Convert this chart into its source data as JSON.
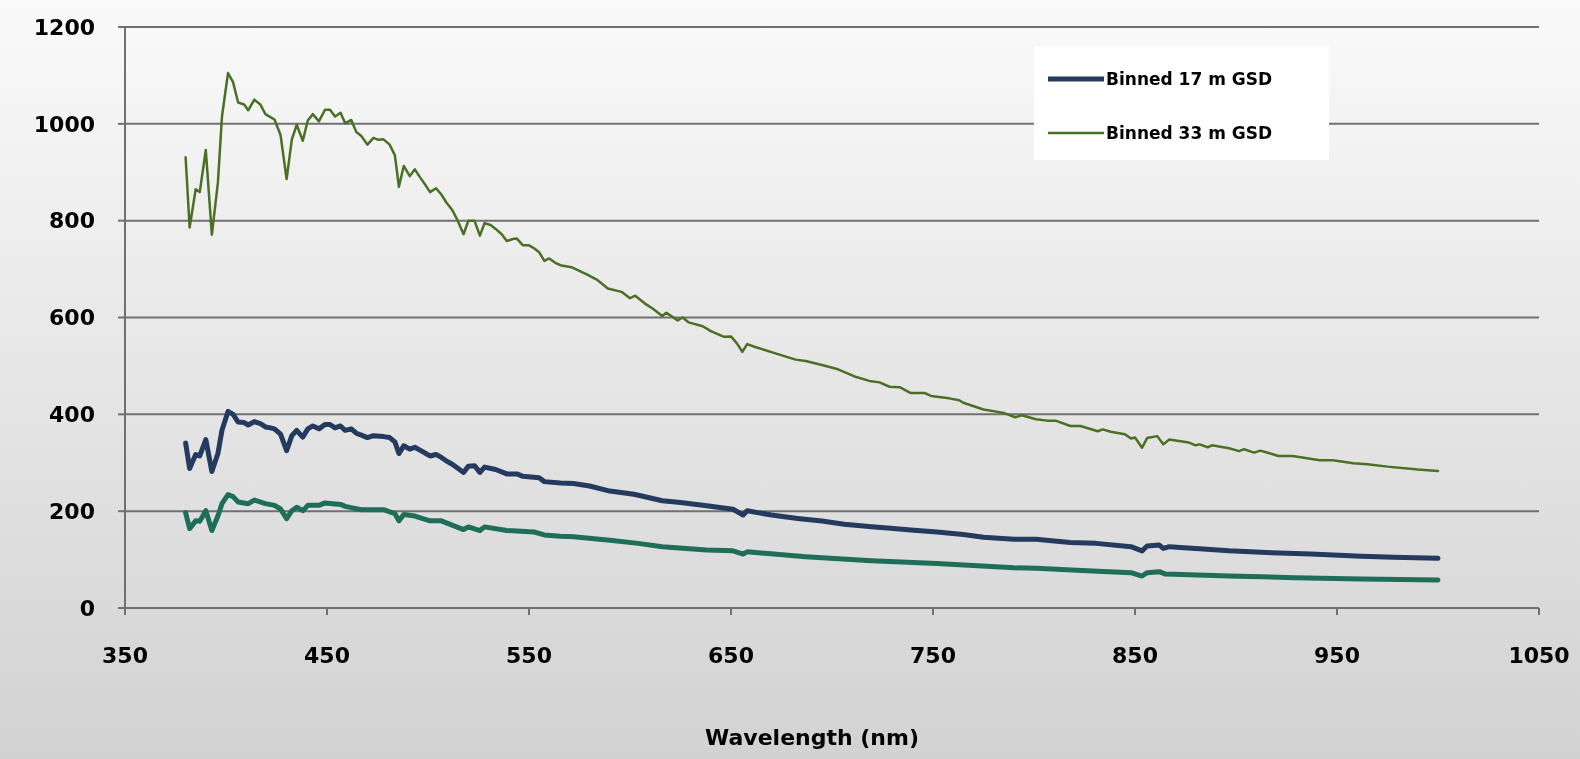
{
  "chart_data": {
    "type": "line",
    "xlabel": "Wavelength (nm)",
    "xlim": [
      350,
      1050
    ],
    "xticks": [
      350,
      450,
      550,
      650,
      750,
      850,
      950,
      1050
    ],
    "ylim": [
      0,
      1200
    ],
    "yticks": [
      0,
      200,
      400,
      600,
      800,
      1000,
      1200
    ],
    "grid": "y",
    "legend": "top right",
    "marker": "none",
    "line_style": "solid",
    "series": [
      {
        "name": "Binned 17 m GSD",
        "color": "#243a5e",
        "x": [
          380,
          382,
          385,
          387,
          390,
          393,
          396,
          398,
          401,
          403.5,
          406,
          409,
          411,
          414,
          417,
          419.5,
          422,
          424,
          427,
          430,
          432.6,
          435,
          438,
          440.5,
          443,
          446,
          449,
          451.5,
          454,
          456.7,
          459,
          462,
          464.5,
          467,
          470,
          473,
          478,
          481,
          483.6,
          485.6,
          488,
          491,
          493.5,
          496,
          499,
          501,
          504,
          506.6,
          509,
          512,
          514.6,
          517.6,
          520,
          523,
          525.7,
          528,
          533.5,
          539,
          544,
          547,
          555,
          557.6,
          565.5,
          572,
          580,
          590,
          602,
          616,
          625,
          638,
          651,
          656,
          658,
          670,
          683,
          695,
          706,
          719.6,
          729,
          739,
          752,
          765,
          775,
          790,
          801,
          818,
          830.8,
          848,
          853.5,
          856,
          862,
          864,
          867,
          880,
          896.6,
          917.6,
          937,
          962,
          978,
          1000
        ],
        "values": [
          341,
          288,
          317,
          314,
          348,
          282,
          319,
          367,
          406,
          400,
          384,
          383,
          378,
          385,
          381,
          374,
          372,
          370,
          359,
          325,
          356,
          367,
          353,
          370,
          376,
          370,
          379,
          379,
          372,
          376,
          367,
          370,
          361,
          357,
          352,
          356,
          354,
          352,
          343,
          319,
          335,
          328,
          332,
          326,
          319,
          314,
          317,
          311,
          304,
          297,
          289,
          280,
          293,
          294,
          280,
          291,
          286,
          277,
          277,
          272,
          269,
          261,
          258,
          257,
          252,
          241.5,
          235,
          221.5,
          218,
          211,
          204,
          192,
          201,
          192,
          185,
          179.6,
          173,
          168,
          164.5,
          161,
          157,
          152,
          146,
          142,
          142,
          135.5,
          133.5,
          126.6,
          118,
          128,
          130,
          123,
          126.6,
          123,
          118,
          114,
          111.5,
          107,
          104.6,
          102.6
        ]
      },
      {
        "name": "Binned 33 m GSD",
        "color": "#4a7023",
        "x": [
          380,
          382,
          385,
          387,
          390,
          393,
          396,
          398,
          401,
          403.5,
          406,
          409,
          411,
          414,
          417,
          419.5,
          422,
          424,
          427,
          430,
          432.6,
          435,
          438,
          440.5,
          443,
          446,
          449,
          451.5,
          454,
          456.7,
          459,
          462,
          464.5,
          467,
          470,
          473,
          475.5,
          478,
          481,
          483.6,
          485.6,
          488,
          491,
          493.5,
          496,
          499,
          501,
          504,
          506.6,
          509,
          512,
          514.6,
          517.6,
          520,
          523,
          525.7,
          528,
          531,
          533.5,
          536.5,
          539,
          542,
          544,
          547,
          550,
          552.5,
          555,
          557.6,
          560,
          563,
          565.5,
          571,
          578.6,
          584,
          589,
          595.8,
          600,
          602.6,
          608,
          611,
          616,
          618,
          623.6,
          626,
          629,
          636,
          640,
          646.6,
          650,
          653,
          655.6,
          658,
          662,
          672,
          682,
          687,
          695,
          703,
          712,
          718.5,
          723.5,
          728.5,
          733.5,
          739,
          746,
          749,
          758,
          763,
          765,
          775,
          785,
          790.7,
          794,
          801,
          806.6,
          810.7,
          818,
          823,
          831.6,
          834,
          838,
          845,
          848,
          850,
          853.5,
          856,
          861,
          864,
          867,
          876.5,
          880,
          882,
          886,
          888,
          896.6,
          901.5,
          904,
          909,
          912,
          917,
          921,
          928,
          941.5,
          948,
          958,
          965,
          975,
          990,
          1000
        ],
        "values": [
          931,
          786,
          865,
          859,
          946,
          771,
          879,
          1015,
          1105,
          1086,
          1044,
          1040,
          1028,
          1050,
          1040,
          1020,
          1014,
          1009,
          977,
          886,
          968,
          998,
          965,
          1007,
          1020,
          1005,
          1029,
          1029,
          1015,
          1023,
          1001,
          1008,
          983,
          975,
          957,
          971,
          967,
          968,
          957,
          935,
          870,
          913,
          892,
          906,
          890,
          872,
          859,
          867,
          854,
          838,
          822,
          801,
          772,
          800,
          800,
          769,
          795,
          791,
          783,
          772,
          758,
          762,
          763,
          749,
          749,
          743,
          735,
          717,
          722,
          713,
          708,
          704,
          689,
          677,
          660,
          653,
          640,
          645,
          627,
          619,
          603,
          610,
          594,
          600,
          590,
          582,
          572,
          560,
          561,
          546,
          529,
          545,
          539,
          526,
          513,
          510,
          502,
          493,
          477,
          469,
          466,
          457,
          456,
          444,
          444,
          438,
          433,
          429,
          424,
          410,
          403,
          394,
          398,
          390,
          387,
          387,
          376,
          376,
          365,
          369,
          364,
          359,
          350,
          352,
          331,
          351,
          355,
          338,
          348,
          342,
          336,
          338,
          332,
          336,
          330,
          324,
          328,
          321,
          325,
          319,
          314,
          314,
          305,
          305,
          299,
          297,
          292,
          286,
          283
        ]
      },
      {
        "color": "#1f6e5a",
        "x": [
          380,
          382,
          385,
          387,
          390,
          393,
          396,
          398,
          401,
          403.5,
          406,
          411,
          414,
          419.5,
          424,
          427,
          430,
          432.6,
          435,
          438,
          440.5,
          446,
          449,
          456.7,
          459,
          467,
          478,
          483.6,
          485.6,
          488,
          493.5,
          501,
          506.6,
          517.6,
          520,
          525.7,
          528,
          539,
          552.5,
          557.6,
          565.5,
          572,
          590,
          604,
          616,
          638,
          651,
          656,
          658,
          687,
          719.6,
          752,
          790,
          801,
          831.6,
          848,
          853.5,
          856,
          862,
          865,
          896.6,
          929,
          962,
          1000
        ],
        "values": [
          197,
          164,
          180,
          179,
          201,
          160,
          190,
          215.5,
          234,
          230,
          219,
          215.5,
          223,
          215.5,
          212,
          204.5,
          184.5,
          201,
          208,
          201,
          212,
          212,
          217,
          214,
          210,
          203,
          203,
          195,
          180,
          193,
          190,
          180,
          180,
          162,
          167.5,
          160,
          167.5,
          160,
          157,
          151,
          148,
          147,
          140,
          133.5,
          126.6,
          120,
          118,
          111.5,
          116,
          106,
          97.6,
          92,
          83,
          82,
          76,
          73,
          66,
          73,
          75,
          70,
          66,
          62.6,
          60,
          57.8
        ]
      }
    ]
  }
}
